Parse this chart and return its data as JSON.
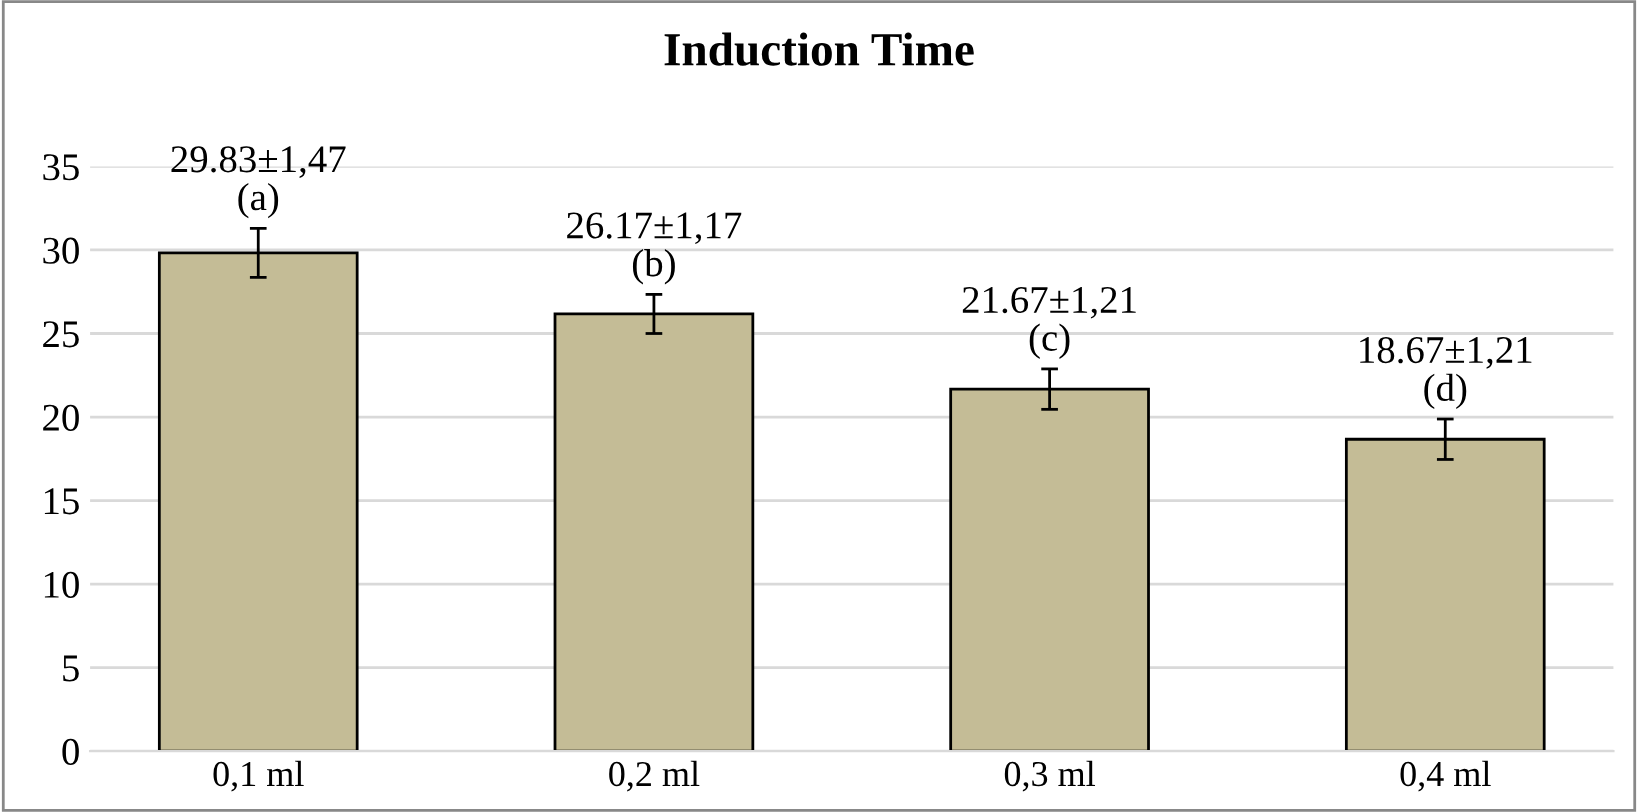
{
  "chart_data": {
    "type": "bar",
    "title": "Induction Time",
    "categories": [
      "0,1 ml",
      "0,2 ml",
      "0,3 ml",
      "0,4 ml"
    ],
    "values": [
      29.83,
      26.17,
      21.67,
      18.67
    ],
    "errors": [
      1.47,
      1.17,
      1.21,
      1.21
    ],
    "value_labels": [
      "29.83±1,47\n(a)",
      "26.17±1,17\n(b)",
      "21.67±1,21\n(c)",
      "18.67±1,21\n(d)"
    ],
    "color": "#c4bc96",
    "ylim": [
      0,
      35
    ],
    "yticks": [
      0,
      5,
      10,
      15,
      20,
      25,
      30,
      35
    ],
    "grid": "y"
  }
}
